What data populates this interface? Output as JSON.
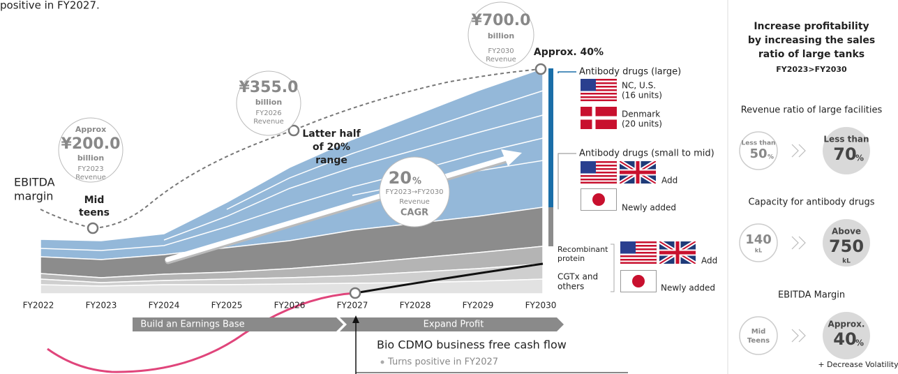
{
  "intro_tail": "positive in FY2027.",
  "revenue_bubbles": [
    {
      "qualifier": "Approx",
      "amount": "¥200.0",
      "unit": "billion",
      "year": "FY2023",
      "label": "Revenue"
    },
    {
      "amount": "¥355.0",
      "unit": "billion",
      "year": "FY2026",
      "label": "Revenue"
    },
    {
      "amount": "¥700.0",
      "unit": "billion",
      "year": "FY2030",
      "label": "Revenue"
    }
  ],
  "ebitda": {
    "label": [
      "EBITDA",
      "margin"
    ],
    "start": [
      "Mid",
      "teens"
    ],
    "middle": [
      "Latter half",
      "of 20%",
      "range"
    ],
    "end": "Approx. 40%"
  },
  "cagr": {
    "value": "20",
    "unit": "%",
    "period": "FY2023→FY2030",
    "label": "Revenue",
    "metric": "CAGR"
  },
  "x_axis": [
    "FY2022",
    "FY2023",
    "FY2024",
    "FY2025",
    "FY2026",
    "FY2027",
    "FY2028",
    "FY2029",
    "FY2030"
  ],
  "phases": [
    "Build an Earnings Base",
    "Expand Profit"
  ],
  "legend": {
    "large": {
      "title": "Antibody drugs (large)",
      "us": [
        "NC, U.S.",
        "(16 units)"
      ],
      "denmark": [
        "Denmark",
        "(20 units)"
      ]
    },
    "small_mid": {
      "title": "Antibody drugs (small to mid)",
      "add": "Add",
      "new": "Newly added"
    },
    "recombinant": [
      "Recombinant",
      "protein"
    ],
    "cgtx": [
      "CGTx and",
      "others"
    ],
    "other_add": "Add",
    "other_new": "Newly added"
  },
  "fcf": {
    "title": "Bio CDMO business free cash flow",
    "note": "Turns positive in FY2027"
  },
  "right_panel": {
    "title": [
      "Increase profitability",
      "by increasing the sales",
      "ratio of large tanks"
    ],
    "period": "FY2023>FY2030",
    "items": [
      {
        "header": "Revenue ratio of large facilities",
        "from": {
          "top": "Less than",
          "num": "50",
          "unit": "%"
        },
        "to": {
          "top": "Less than",
          "num": "70",
          "unit": "%"
        }
      },
      {
        "header": "Capacity for antibody drugs",
        "from": {
          "num": "140",
          "unit": "kL"
        },
        "to": {
          "top": "Above",
          "num": "750",
          "unit": "kL"
        }
      },
      {
        "header": "EBITDA Margin",
        "from": {
          "lines": [
            "Mid",
            "Teens"
          ]
        },
        "to": {
          "top": "Approx.",
          "num": "40",
          "unit": "%"
        }
      }
    ],
    "footnote": "+ Decrease Volatility"
  }
}
